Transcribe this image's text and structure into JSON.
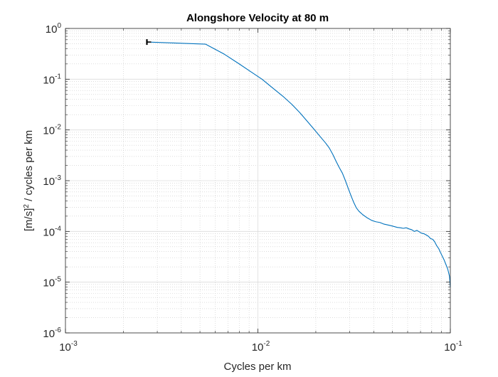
{
  "chart_data": {
    "type": "line",
    "title": "Alongshore Velocity at 80 m",
    "xlabel": "Cycles per km",
    "ylabel_parts": [
      "[m/s]",
      "2",
      " / cycles per km"
    ],
    "x_scale": "log",
    "y_scale": "log",
    "xlim": [
      0.001,
      0.1
    ],
    "ylim": [
      1e-06,
      1
    ],
    "grid": true,
    "minor_grid": true,
    "xticks": [
      {
        "value": 0.001,
        "base": "10",
        "exp": "-3"
      },
      {
        "value": 0.01,
        "base": "10",
        "exp": "-2"
      },
      {
        "value": 0.1,
        "base": "10",
        "exp": "-1"
      }
    ],
    "yticks": [
      {
        "value": 1e-06,
        "base": "10",
        "exp": "-6"
      },
      {
        "value": 1e-05,
        "base": "10",
        "exp": "-5"
      },
      {
        "value": 0.0001,
        "base": "10",
        "exp": "-4"
      },
      {
        "value": 0.001,
        "base": "10",
        "exp": "-3"
      },
      {
        "value": 0.01,
        "base": "10",
        "exp": "-2"
      },
      {
        "value": 0.1,
        "base": "10",
        "exp": "-1"
      },
      {
        "value": 1,
        "base": "10",
        "exp": "0"
      }
    ],
    "series": [
      {
        "color": "#0072BD",
        "x": [
          0.00265,
          0.00535,
          0.0067,
          0.008,
          0.0092,
          0.0105,
          0.012,
          0.0135,
          0.015,
          0.0165,
          0.018,
          0.0195,
          0.021,
          0.0225,
          0.0235,
          0.0245,
          0.0255,
          0.0265,
          0.0275,
          0.0285,
          0.0295,
          0.0305,
          0.0315,
          0.0325,
          0.0335,
          0.035,
          0.037,
          0.039,
          0.041,
          0.043,
          0.045,
          0.047,
          0.049,
          0.051,
          0.053,
          0.055,
          0.057,
          0.059,
          0.061,
          0.063,
          0.065,
          0.067,
          0.069,
          0.071,
          0.073,
          0.075,
          0.077,
          0.079,
          0.081,
          0.083,
          0.085,
          0.087,
          0.089,
          0.091,
          0.093,
          0.095,
          0.097,
          0.099,
          0.1
        ],
        "y": [
          0.54,
          0.49,
          0.31,
          0.2,
          0.14,
          0.1,
          0.066,
          0.046,
          0.032,
          0.022,
          0.015,
          0.0105,
          0.0075,
          0.0055,
          0.0044,
          0.0033,
          0.0024,
          0.0018,
          0.0014,
          0.001,
          0.0007,
          0.0005,
          0.00037,
          0.00029,
          0.00025,
          0.000215,
          0.000185,
          0.000165,
          0.000155,
          0.00015,
          0.00014,
          0.000135,
          0.00013,
          0.000125,
          0.00012,
          0.000118,
          0.000115,
          0.000118,
          0.000112,
          0.000108,
          0.0001,
          0.000105,
          9.8e-05,
          9.2e-05,
          9e-05,
          8.5e-05,
          8e-05,
          7.2e-05,
          7e-05,
          6.2e-05,
          5.2e-05,
          4.6e-05,
          3.8e-05,
          3.2e-05,
          2.7e-05,
          2.2e-05,
          1.8e-05,
          1.3e-05,
          8e-06
        ]
      }
    ],
    "start_marker": {
      "x": 0.00265,
      "y": 0.54,
      "color": "#000000"
    }
  }
}
